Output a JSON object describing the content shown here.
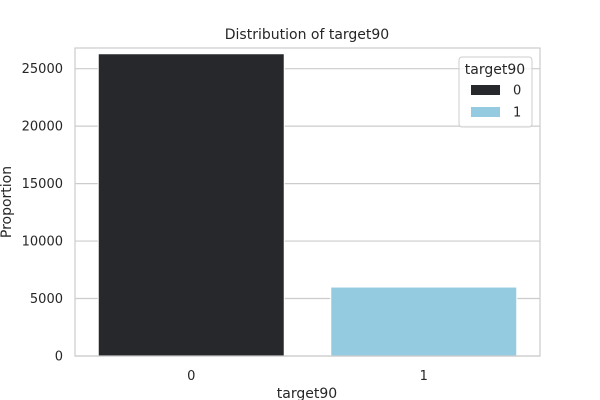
{
  "chart_data": {
    "type": "bar",
    "title": "Distribution of target90",
    "xlabel": "target90",
    "ylabel": "Proportion",
    "categories": [
      "0",
      "1"
    ],
    "values": [
      26300,
      6000
    ],
    "ylim": [
      0,
      26800
    ],
    "yticks": [
      0,
      5000,
      10000,
      15000,
      20000,
      25000
    ],
    "ytick_labels": [
      "0",
      "5000",
      "10000",
      "15000",
      "20000",
      "25000"
    ],
    "grid": "y",
    "bar_colors": [
      "#26282b",
      "#95cbe1"
    ],
    "legend": {
      "title": "target90",
      "placement": "top-right",
      "entries": [
        {
          "label": "0",
          "color": "#26282b"
        },
        {
          "label": "1",
          "color": "#95cbe1"
        }
      ]
    }
  }
}
